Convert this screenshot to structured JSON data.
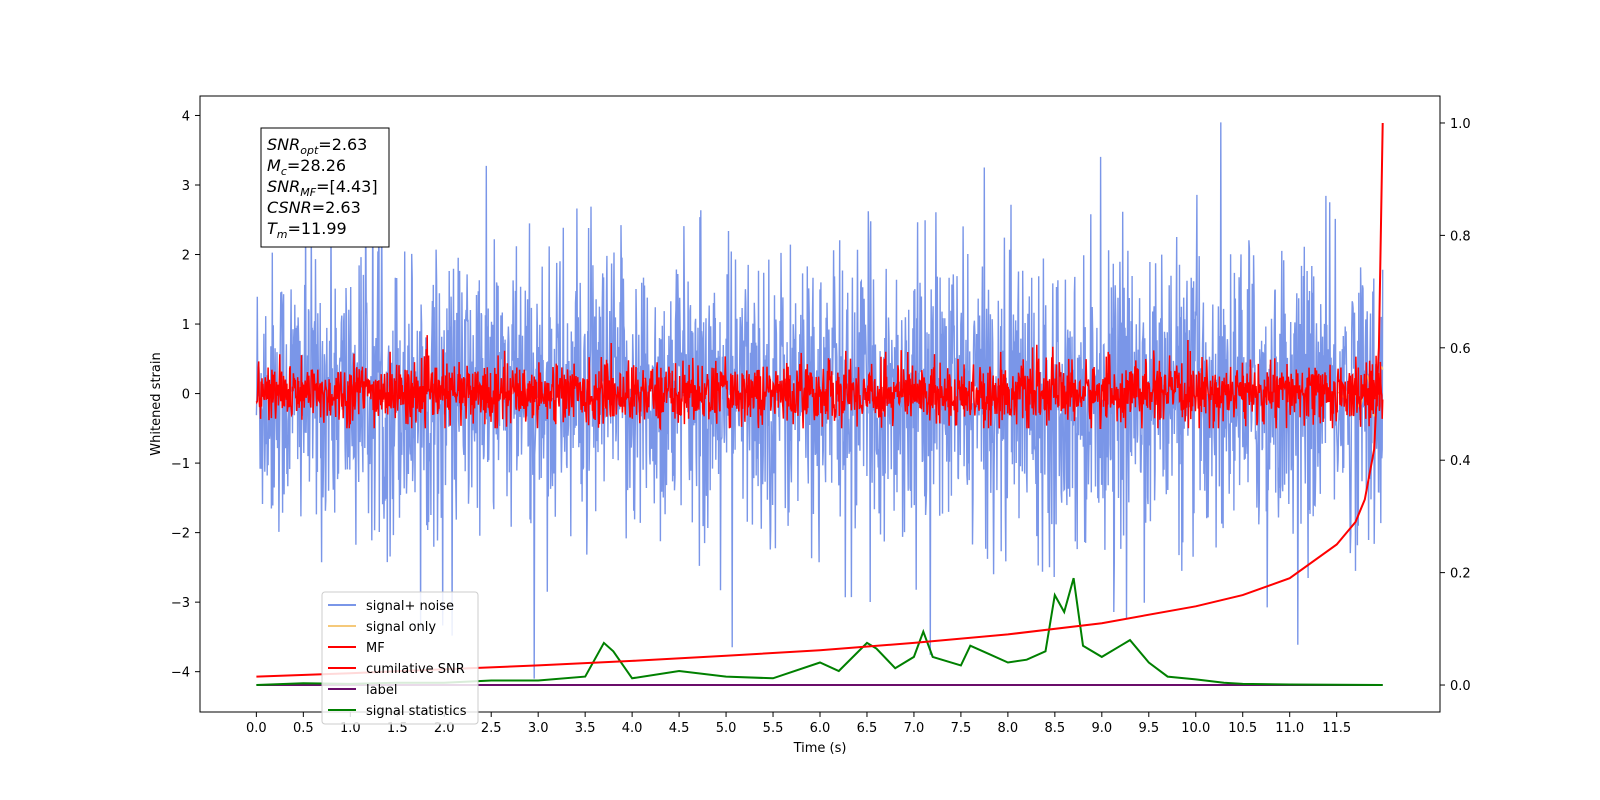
{
  "chart_data": {
    "type": "line",
    "title": "",
    "xlabel": "Time (s)",
    "ylabel": "Whitened strain",
    "xlim": [
      -0.6,
      12.6
    ],
    "ylim": [
      -4.58,
      4.28
    ],
    "y2lim": [
      -0.048,
      1.048
    ],
    "grid": false,
    "legend_position": "lower-left",
    "x_ticks": [
      "0.0",
      "0.5",
      "1.0",
      "1.5",
      "2.0",
      "2.5",
      "3.0",
      "3.5",
      "4.0",
      "4.5",
      "5.0",
      "5.5",
      "6.0",
      "6.5",
      "7.0",
      "7.5",
      "8.0",
      "8.5",
      "9.0",
      "9.5",
      "10.0",
      "10.5",
      "11.0",
      "11.5"
    ],
    "y_ticks": [
      "4",
      "3",
      "2",
      "1",
      "0",
      "−1",
      "−2",
      "−3",
      "−4"
    ],
    "y2_ticks": [
      "1.0",
      "0.8",
      "0.6",
      "0.4",
      "0.2",
      "0.0"
    ],
    "annotation": {
      "lines": [
        {
          "base": "SNR",
          "sub": "opt",
          "value": "=2.63"
        },
        {
          "base": "M",
          "sub": "c",
          "value": "=28.26"
        },
        {
          "base": "SNR",
          "sub": "MF",
          "value": "=[4.43]"
        },
        {
          "base": "CSNR",
          "sub": "",
          "value": "=2.63"
        },
        {
          "base": "T",
          "sub": "m",
          "value": "=11.99"
        }
      ]
    },
    "series": [
      {
        "name": "signal+ noise",
        "color": "#7a96e8",
        "axis": "left",
        "envelope_max": 3.9,
        "envelope_min": -4.1
      },
      {
        "name": "signal only",
        "color": "#f5c97a",
        "axis": "left",
        "values_note": "near zero"
      },
      {
        "name": "MF",
        "color": "#ff0000",
        "axis": "left",
        "envelope_max": 1.0,
        "envelope_min": -0.5
      },
      {
        "name": "cumilative SNR",
        "color": "#ff0000",
        "axis": "right",
        "x": [
          0.0,
          1.0,
          2.0,
          3.0,
          4.0,
          5.0,
          6.0,
          7.0,
          8.0,
          9.0,
          10.0,
          10.5,
          11.0,
          11.5,
          11.7,
          11.8,
          11.9,
          11.95,
          11.99
        ],
        "y": [
          0.015,
          0.021,
          0.028,
          0.035,
          0.043,
          0.052,
          0.062,
          0.075,
          0.09,
          0.11,
          0.14,
          0.16,
          0.19,
          0.25,
          0.29,
          0.33,
          0.42,
          0.6,
          1.0
        ]
      },
      {
        "name": "label",
        "color": "#6a0d6a",
        "axis": "right",
        "x": [
          0.0,
          11.99
        ],
        "y": [
          0.0,
          0.0
        ]
      },
      {
        "name": "signal statistics",
        "color": "#008000",
        "axis": "right",
        "x": [
          0.0,
          0.5,
          1.0,
          1.5,
          2.0,
          2.5,
          3.0,
          3.5,
          3.7,
          3.8,
          4.0,
          4.5,
          5.0,
          5.5,
          6.0,
          6.2,
          6.5,
          6.6,
          6.8,
          7.0,
          7.1,
          7.2,
          7.5,
          7.6,
          7.8,
          8.0,
          8.2,
          8.4,
          8.5,
          8.6,
          8.7,
          8.8,
          9.0,
          9.2,
          9.3,
          9.5,
          9.7,
          10.0,
          10.3,
          10.5,
          11.0,
          11.5,
          11.99
        ],
        "y": [
          0.0,
          0.003,
          0.002,
          0.004,
          0.004,
          0.008,
          0.008,
          0.015,
          0.075,
          0.06,
          0.012,
          0.025,
          0.015,
          0.012,
          0.04,
          0.025,
          0.075,
          0.065,
          0.03,
          0.05,
          0.095,
          0.05,
          0.035,
          0.07,
          0.055,
          0.04,
          0.045,
          0.06,
          0.16,
          0.13,
          0.19,
          0.07,
          0.05,
          0.07,
          0.08,
          0.04,
          0.015,
          0.01,
          0.004,
          0.002,
          0.001,
          0.0005,
          0.0
        ]
      }
    ]
  }
}
